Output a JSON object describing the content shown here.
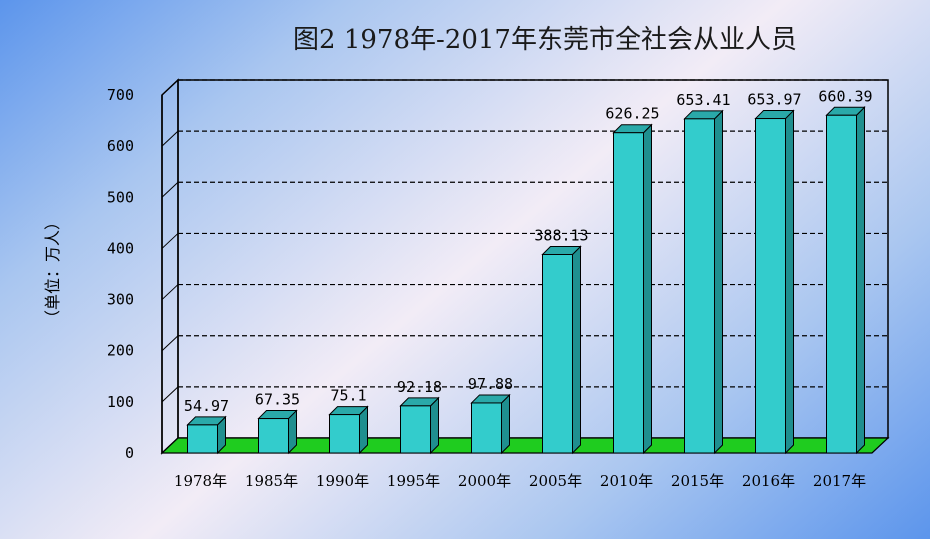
{
  "chart_data": {
    "type": "bar",
    "title": "图2 1978年-2017年东莞市全社会从业人员",
    "ylabel": "（单位：万人）",
    "xlabel": "",
    "categories": [
      "1978年",
      "1985年",
      "1990年",
      "1995年",
      "2000年",
      "2005年",
      "2010年",
      "2015年",
      "2016年",
      "2017年"
    ],
    "values": [
      54.97,
      67.35,
      75.1,
      92.18,
      97.88,
      388.13,
      626.25,
      653.41,
      653.97,
      660.39
    ],
    "data_labels": [
      "54.97",
      "67.35",
      "75.1",
      "92.18",
      "97.88",
      "388.13",
      "626.25",
      "653.41",
      "653.97",
      "660.39"
    ],
    "ylim": [
      0,
      700
    ],
    "yticks": [
      0,
      100,
      200,
      300,
      400,
      500,
      600,
      700
    ],
    "grid": true,
    "colors": {
      "bar_front": "#33cccc",
      "bar_side": "#1f8f8f",
      "bar_top": "#2aa9a9",
      "floor": "#1fcc1f",
      "grid": "#000000"
    }
  }
}
